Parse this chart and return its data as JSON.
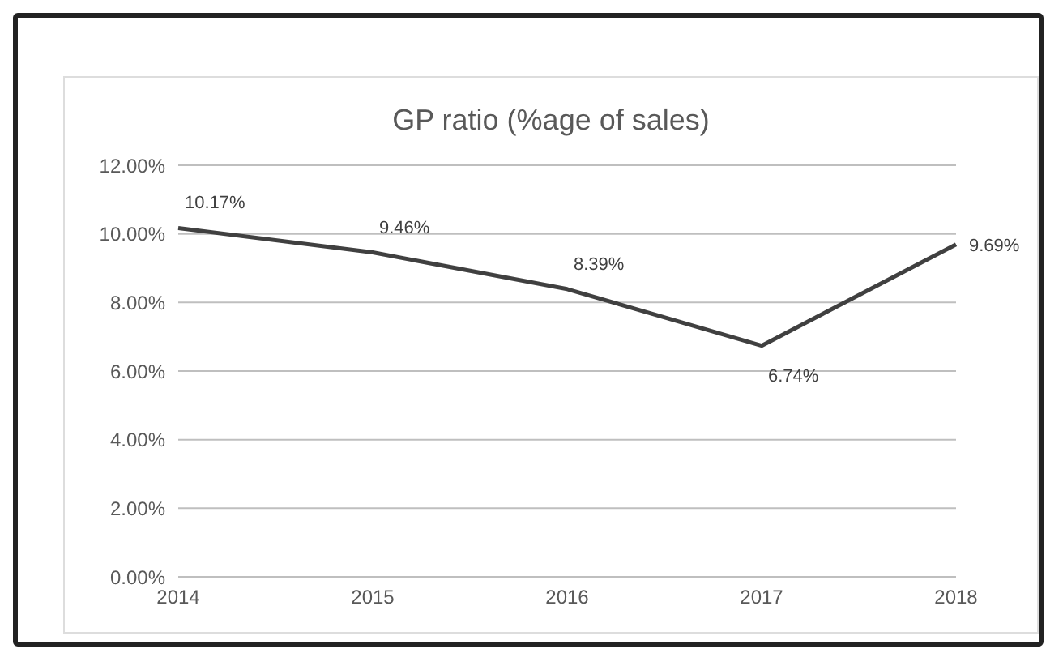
{
  "chart_data": {
    "type": "line",
    "title": "GP ratio (%age of sales)",
    "categories": [
      "2014",
      "2015",
      "2016",
      "2017",
      "2018"
    ],
    "series": [
      {
        "color": "#404040",
        "values": [
          10.17,
          9.46,
          8.39,
          6.74,
          9.69
        ],
        "value_labels": [
          "10.17%",
          "9.46%",
          "8.39%",
          "6.74%",
          "9.69%"
        ]
      }
    ],
    "ylim": [
      0,
      12
    ],
    "yticks": [
      {
        "value": 0,
        "label": "0.00%"
      },
      {
        "value": 2,
        "label": "2.00%"
      },
      {
        "value": 4,
        "label": "4.00%"
      },
      {
        "value": 6,
        "label": "6.00%"
      },
      {
        "value": 8,
        "label": "8.00%"
      },
      {
        "value": 10,
        "label": "10.00%"
      },
      {
        "value": 12,
        "label": "12.00%"
      }
    ],
    "grid": "y",
    "legend": false,
    "marker": "none",
    "line_style": "solid"
  }
}
